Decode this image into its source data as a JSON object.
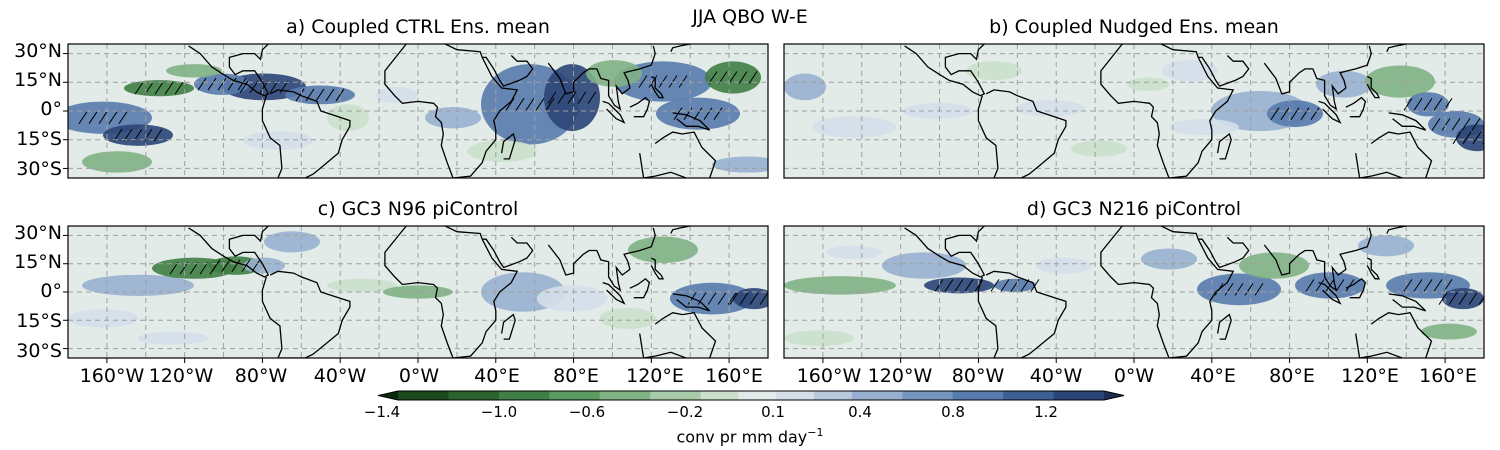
{
  "figure": {
    "suptitle": "JJA QBO W-E"
  },
  "panels": [
    {
      "id": "a",
      "title": "a) Coupled CTRL Ens. mean"
    },
    {
      "id": "b",
      "title": "b) Coupled Nudged Ens. mean"
    },
    {
      "id": "c",
      "title": "c) GC3 N96 piControl"
    },
    {
      "id": "d",
      "title": "d) GC3 N216 piControl"
    }
  ],
  "axes": {
    "lat_ticks": [
      "30°N",
      "15°N",
      "0°",
      "15°S",
      "30°S"
    ],
    "lon_ticks": [
      "160°W",
      "120°W",
      "80°W",
      "40°W",
      "0°W",
      "40°E",
      "80°E",
      "120°E",
      "160°E"
    ]
  },
  "colorbar": {
    "ticks": [
      "−1.4",
      "−1.0",
      "−0.6",
      "−0.2",
      "0.1",
      "0.4",
      "0.8",
      "1.2"
    ],
    "label": "conv pr mm day",
    "label_superscript": "−1",
    "levels": [
      -1.6,
      -1.4,
      -1.2,
      -1.0,
      -0.8,
      -0.6,
      -0.4,
      -0.2,
      -0.05,
      0.1,
      0.25,
      0.4,
      0.6,
      0.8,
      1.0,
      1.2,
      1.4,
      1.6
    ],
    "colors": [
      "#0a2a0c",
      "#1b4a1f",
      "#2a6330",
      "#3f7e44",
      "#5b9a60",
      "#80b384",
      "#a7cba9",
      "#cbe0cc",
      "#e2ebe8",
      "#d5dfea",
      "#b8c9de",
      "#98b1d0",
      "#7796bf",
      "#587bad",
      "#3c5f94",
      "#2b4577",
      "#1f2c55"
    ]
  },
  "colors": {
    "ocean_neutral": "#e2ebe8",
    "coastline": "#000000",
    "gridline": "#a0a0a0"
  }
}
